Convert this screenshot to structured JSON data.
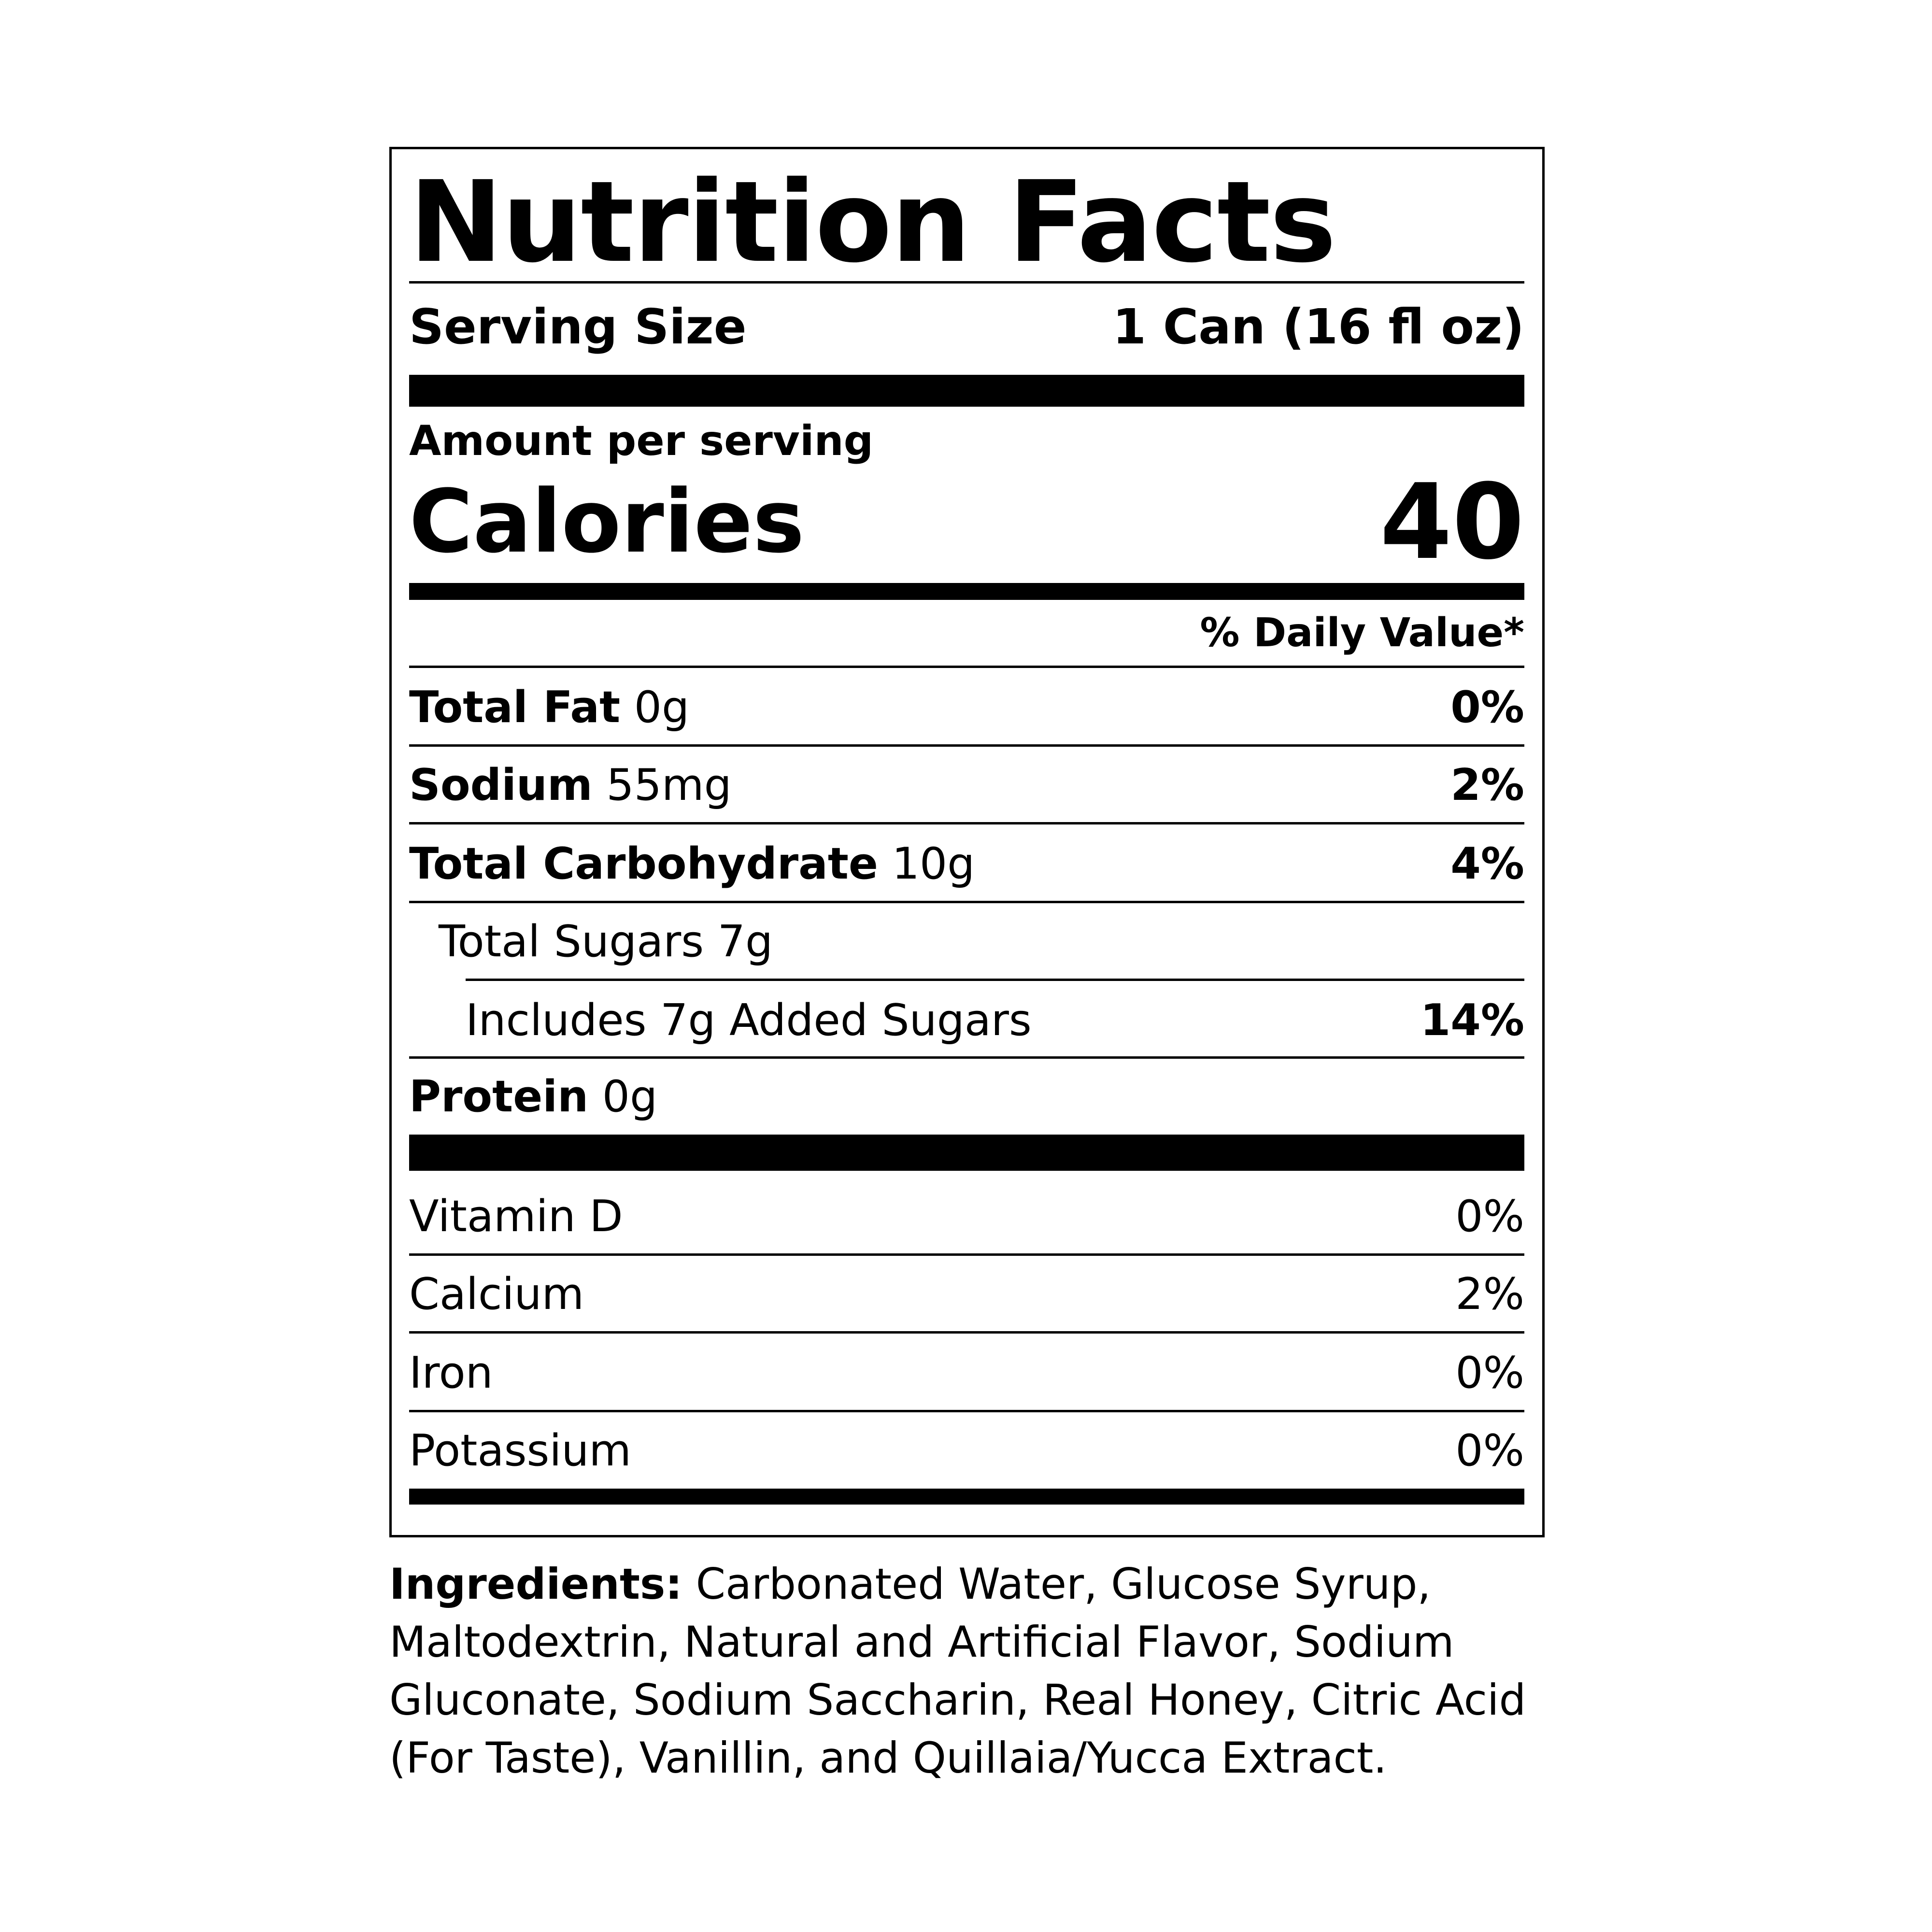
{
  "title": "Nutrition Facts",
  "serving": {
    "label": "Serving Size",
    "value": "1 Can (16 fl oz)"
  },
  "amount_per_serving": "Amount per serving",
  "calories": {
    "label": "Calories",
    "value": "40"
  },
  "daily_value_header": "% Daily Value*",
  "nutrients": [
    {
      "name": "Total Fat",
      "amount": "0g",
      "dv": "0%"
    },
    {
      "name": "Sodium",
      "amount": "55mg",
      "dv": "2%"
    },
    {
      "name": "Total Carbohydrate",
      "amount": "10g",
      "dv": "4%"
    },
    {
      "name": "Total Sugars 7g",
      "amount": "",
      "dv": ""
    },
    {
      "name": "Includes 7g Added Sugars",
      "amount": "",
      "dv": "14%"
    },
    {
      "name": "Protein",
      "amount": "0g",
      "dv": ""
    }
  ],
  "vitamins": [
    {
      "name": "Vitamin D",
      "dv": "0%"
    },
    {
      "name": "Calcium",
      "dv": "2%"
    },
    {
      "name": "Iron",
      "dv": "0%"
    },
    {
      "name": "Potassium",
      "dv": "0%"
    }
  ],
  "ingredients": {
    "label": "Ingredients:",
    "text": "Carbonated Water, Glucose Syrup, Maltodextrin, Natural and Artificial Flavor, Sodium Gluconate, Sodium Saccharin, Real Honey, Citric Acid (For Taste), Vanillin, and Quillaia/Yucca Extract."
  }
}
